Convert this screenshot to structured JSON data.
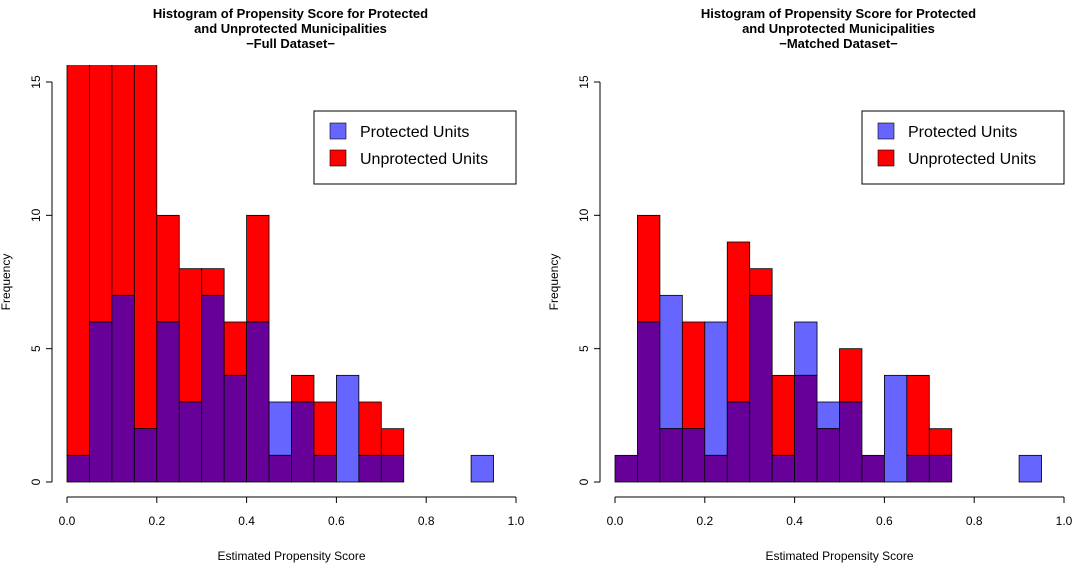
{
  "chart_data": [
    {
      "type": "bar",
      "title_lines": [
        "Histogram of Propensity Score for Protected",
        "and Unprotected Municipalities",
        "−Full Dataset−"
      ],
      "xlabel": "Estimated Propensity Score",
      "ylabel": "Frequency",
      "xlim": [
        0,
        1
      ],
      "ylim": [
        0,
        15
      ],
      "x_ticks": [
        "0.0",
        "0.2",
        "0.4",
        "0.6",
        "0.8",
        "1.0"
      ],
      "y_ticks": [
        "0",
        "5",
        "10",
        "15"
      ],
      "legend_position": "top-right",
      "grid": false,
      "bin_width": 0.05,
      "bin_starts": [
        0,
        0.05,
        0.1,
        0.15,
        0.2,
        0.25,
        0.3,
        0.35,
        0.4,
        0.45,
        0.5,
        0.55,
        0.6,
        0.65,
        0.7,
        0.75,
        0.8,
        0.85,
        0.9
      ],
      "series": [
        {
          "name": "Protected Units",
          "color": "#6666ff",
          "values": [
            1,
            6,
            7,
            2,
            6,
            3,
            7,
            4,
            6,
            3,
            3,
            1,
            4,
            1,
            1,
            0,
            0,
            0,
            1
          ]
        },
        {
          "name": "Unprotected Units",
          "color": "#ff0000",
          "values": [
            16,
            16,
            16,
            16,
            10,
            8,
            8,
            6,
            10,
            1,
            4,
            3,
            0,
            3,
            2,
            0,
            0,
            0,
            0
          ]
        }
      ],
      "overlap_color": "#660099"
    },
    {
      "type": "bar",
      "title_lines": [
        "Histogram of Propensity Score for Protected",
        "and Unprotected Municipalities",
        "−Matched Dataset−"
      ],
      "xlabel": "Estimated Propensity Score",
      "ylabel": "Frequency",
      "xlim": [
        0,
        1
      ],
      "ylim": [
        0,
        15
      ],
      "x_ticks": [
        "0.0",
        "0.2",
        "0.4",
        "0.6",
        "0.8",
        "1.0"
      ],
      "y_ticks": [
        "0",
        "5",
        "10",
        "15"
      ],
      "legend_position": "top-right",
      "grid": false,
      "bin_width": 0.05,
      "bin_starts": [
        0,
        0.05,
        0.1,
        0.15,
        0.2,
        0.25,
        0.3,
        0.35,
        0.4,
        0.45,
        0.5,
        0.55,
        0.6,
        0.65,
        0.7,
        0.75,
        0.8,
        0.85,
        0.9
      ],
      "series": [
        {
          "name": "Protected Units",
          "color": "#6666ff",
          "values": [
            1,
            6,
            7,
            2,
            6,
            3,
            7,
            1,
            6,
            3,
            3,
            1,
            4,
            1,
            1,
            0,
            0,
            0,
            1
          ]
        },
        {
          "name": "Unprotected Units",
          "color": "#ff0000",
          "values": [
            1,
            10,
            2,
            6,
            1,
            9,
            8,
            4,
            4,
            2,
            5,
            1,
            0,
            4,
            2,
            0,
            0,
            0,
            0
          ]
        }
      ],
      "overlap_color": "#660099"
    }
  ]
}
